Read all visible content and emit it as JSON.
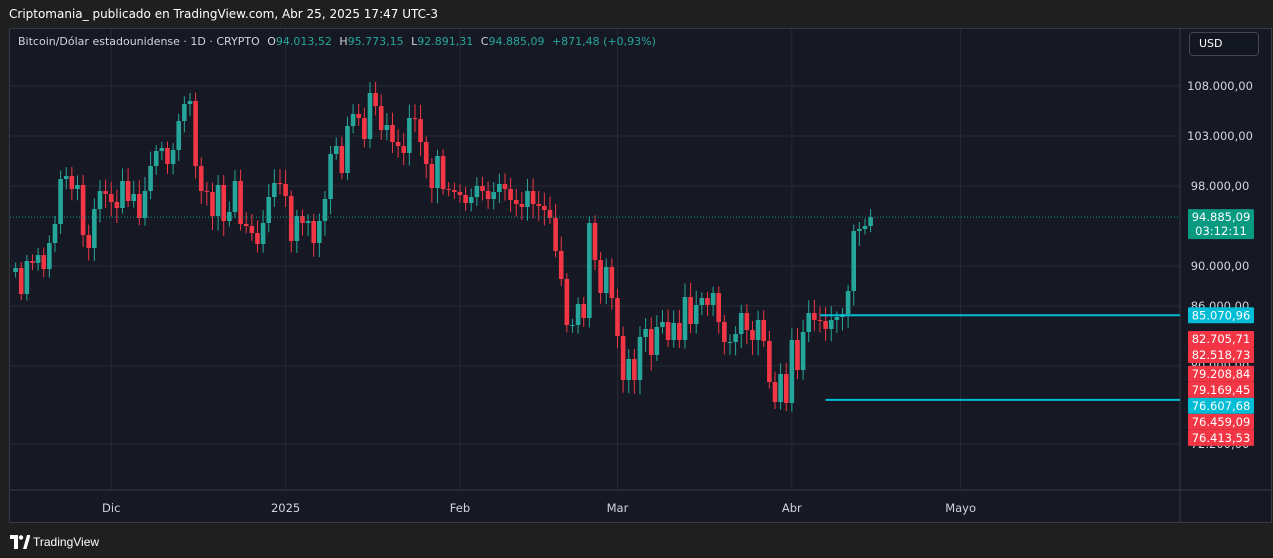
{
  "header": {
    "publisher": "Criptomania_ publicado en TradingView.com, Abr 25, 2025 17:47 UTC-3"
  },
  "legend": {
    "symbol": "Bitcoin/Dólar estadounidense · 1D · CRYPTO",
    "o_label": "O",
    "o_value": "94.013,52",
    "h_label": "H",
    "h_value": "95.773,15",
    "l_label": "L",
    "l_value": "92.891,31",
    "c_label": "C",
    "c_value": "94.885,09",
    "change": "+871,48 (+0,93%)"
  },
  "currency": "USD",
  "footer": {
    "brand": "TradingView"
  },
  "colors": {
    "up": "#26a69a",
    "down": "#f23645",
    "level_line": "#00bcd4",
    "background": "#161924",
    "grid": "#262a35"
  },
  "chart_data": {
    "type": "candlestick",
    "title": "Bitcoin/Dólar estadounidense · 1D · CRYPTO",
    "y_axis_ticks": [
      "108.000,00",
      "103.000,00",
      "98.000,00",
      "90.000,00",
      "86.000,00",
      "80.000,00",
      "72.200,00"
    ],
    "x_axis_ticks": [
      "Dic",
      "2025",
      "Feb",
      "Mar",
      "Abr",
      "Mayo"
    ],
    "ylim": [
      70500,
      111000
    ],
    "price_labels": [
      {
        "text": "94.885,09",
        "sub": "03:12:11",
        "value": 94885.09,
        "color": "#089981"
      },
      {
        "text": "85.070,96",
        "value": 85070.96,
        "color": "#00bcd4"
      },
      {
        "text": "82.705,71",
        "value": 82705.71,
        "color": "#f23645"
      },
      {
        "text": "82.518,73",
        "value": 82518.73,
        "color": "#f23645"
      },
      {
        "text": "79.208,84",
        "value": 79208.84,
        "color": "#f23645"
      },
      {
        "text": "79.169,45",
        "value": 79169.45,
        "color": "#f23645"
      },
      {
        "text": "76.607,68",
        "value": 76607.68,
        "color": "#00bcd4"
      },
      {
        "text": "76.459,09",
        "value": 76459.09,
        "color": "#f23645"
      },
      {
        "text": "76.413,53",
        "value": 76413.53,
        "color": "#f23645"
      }
    ],
    "levels": [
      {
        "value": 85070.96,
        "from": "2025-04-06"
      },
      {
        "value": 76607.68,
        "from": "2025-04-07"
      }
    ],
    "x_start_date": "2024-11-14",
    "closes": [
      89800,
      87200,
      90500,
      90300,
      91100,
      89700,
      92300,
      94200,
      98700,
      99000,
      97700,
      98100,
      93100,
      91800,
      95700,
      97500,
      97200,
      96400,
      95800,
      98500,
      96500,
      97200,
      94800,
      97500,
      100000,
      101500,
      101800,
      100200,
      101600,
      104500,
      106200,
      106500,
      100000,
      97500,
      97400,
      95000,
      98100,
      94500,
      95400,
      98500,
      94200,
      94000,
      93300,
      92200,
      94300,
      96900,
      98300,
      98200,
      97000,
      92500,
      95000,
      94300,
      94500,
      92300,
      94500,
      96700,
      101200,
      102000,
      99300,
      104000,
      105200,
      104800,
      102700,
      107300,
      106000,
      103600,
      104100,
      102400,
      102000,
      101300,
      104800,
      104700,
      102400,
      100200,
      97800,
      101000,
      97700,
      97600,
      97400,
      97100,
      96300,
      96900,
      98000,
      97500,
      96700,
      97400,
      98200,
      97700,
      96600,
      96200,
      95900,
      97500,
      96200,
      96000,
      95600,
      94800,
      91500,
      88700,
      84100,
      84100,
      86200,
      84800,
      94300,
      90600,
      87300,
      89900,
      86800,
      83000,
      78600,
      80700,
      78600,
      82900,
      83700,
      81100,
      83900,
      84400,
      82600,
      84300,
      82600,
      86900,
      84200,
      86100,
      86800,
      86100,
      87300,
      84400,
      82400,
      82400,
      83200,
      85300,
      83600,
      82600,
      84600,
      82500,
      78400,
      76400,
      79200,
      76300,
      82600,
      79600,
      83400,
      85300,
      84600,
      84500,
      83700,
      84600,
      84900,
      85200,
      87500,
      93500,
      93700,
      94000,
      94900
    ]
  }
}
